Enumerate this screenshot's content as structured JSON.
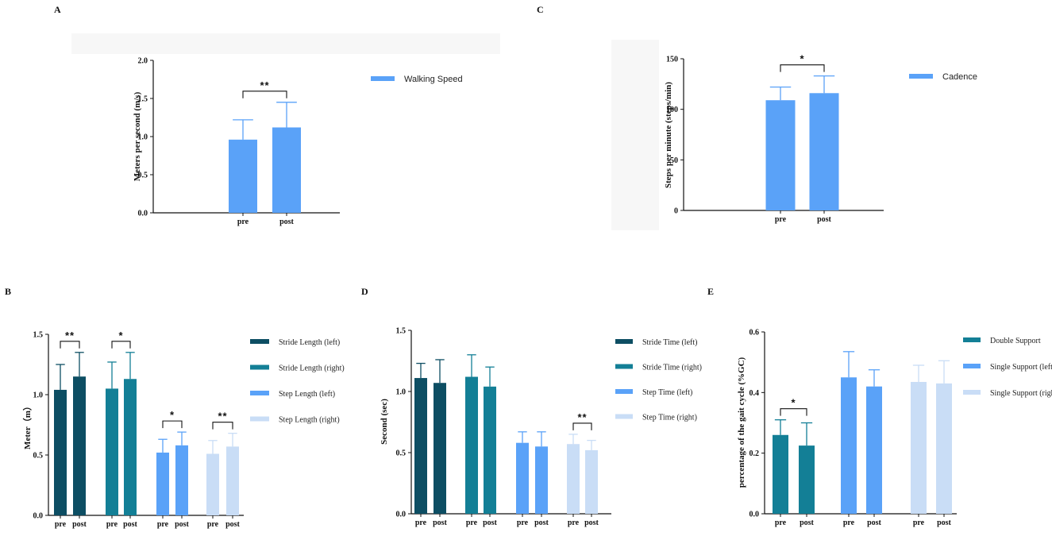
{
  "colors": {
    "light_blue": "#5aa2f8",
    "dark_teal": "#0d4e63",
    "teal": "#137f96",
    "pale_blue": "#c9ddf6",
    "axis": "#111111",
    "background_patch": "#f7f7f7"
  },
  "chart_data": [
    {
      "id": "A",
      "panel_label": "A",
      "type": "bar",
      "ylabel": "Meters per second (m/s)",
      "ylim": [
        0,
        2.0
      ],
      "yticks": [
        "0.0",
        "0.5",
        "1.0",
        "1.5",
        "2.0"
      ],
      "categories": [
        "pre",
        "post"
      ],
      "bars": [
        {
          "category": "pre",
          "value": 0.96,
          "error": 0.26,
          "color": "#5aa2f8"
        },
        {
          "category": "post",
          "value": 1.12,
          "error": 0.33,
          "color": "#5aa2f8"
        }
      ],
      "significance": [
        {
          "from": 0,
          "to": 1,
          "label": "**"
        }
      ],
      "legend": [
        {
          "label": "Walking Speed",
          "color": "#5aa2f8"
        }
      ],
      "legend_position": "right"
    },
    {
      "id": "C",
      "panel_label": "C",
      "type": "bar",
      "ylabel": "Steps per minute (steps/min)",
      "ylim": [
        0,
        150
      ],
      "yticks": [
        "0",
        "50",
        "100",
        "150"
      ],
      "categories": [
        "pre",
        "post"
      ],
      "bars": [
        {
          "category": "pre",
          "value": 109,
          "error": 13,
          "color": "#5aa2f8"
        },
        {
          "category": "post",
          "value": 116,
          "error": 17,
          "color": "#5aa2f8"
        }
      ],
      "significance": [
        {
          "from": 0,
          "to": 1,
          "label": "*"
        }
      ],
      "legend": [
        {
          "label": "Cadence",
          "color": "#5aa2f8"
        }
      ],
      "legend_position": "right"
    },
    {
      "id": "B",
      "panel_label": "B",
      "type": "bar",
      "ylabel": "Meter（m）",
      "ylim": [
        0,
        1.5
      ],
      "yticks": [
        "0.0",
        "0.5",
        "1.0",
        "1.5"
      ],
      "categories": [
        "pre",
        "post",
        "pre",
        "post",
        "pre",
        "post",
        "pre",
        "post"
      ],
      "bars": [
        {
          "category": "pre",
          "value": 1.04,
          "error": 0.21,
          "color": "#0d4e63"
        },
        {
          "category": "post",
          "value": 1.15,
          "error": 0.2,
          "color": "#0d4e63"
        },
        {
          "category": "pre",
          "value": 1.05,
          "error": 0.22,
          "color": "#137f96"
        },
        {
          "category": "post",
          "value": 1.13,
          "error": 0.22,
          "color": "#137f96"
        },
        {
          "category": "pre",
          "value": 0.52,
          "error": 0.11,
          "color": "#5aa2f8"
        },
        {
          "category": "post",
          "value": 0.58,
          "error": 0.11,
          "color": "#5aa2f8"
        },
        {
          "category": "pre",
          "value": 0.51,
          "error": 0.11,
          "color": "#c9ddf6"
        },
        {
          "category": "post",
          "value": 0.57,
          "error": 0.11,
          "color": "#c9ddf6"
        }
      ],
      "significance": [
        {
          "from": 0,
          "to": 1,
          "label": "**"
        },
        {
          "from": 2,
          "to": 3,
          "label": "*"
        },
        {
          "from": 4,
          "to": 5,
          "label": "*"
        },
        {
          "from": 6,
          "to": 7,
          "label": "**"
        }
      ],
      "legend": [
        {
          "label": "Stride Length (left)",
          "color": "#0d4e63"
        },
        {
          "label": "Stride Length (right)",
          "color": "#137f96"
        },
        {
          "label": "Step Length (left)",
          "color": "#5aa2f8"
        },
        {
          "label": "Step Length (right)",
          "color": "#c9ddf6"
        }
      ],
      "legend_position": "right"
    },
    {
      "id": "D",
      "panel_label": "D",
      "type": "bar",
      "ylabel": "Second (sec)",
      "ylim": [
        0,
        1.5
      ],
      "yticks": [
        "0.0",
        "0.5",
        "1.0",
        "1.5"
      ],
      "categories": [
        "pre",
        "post",
        "pre",
        "post",
        "pre",
        "post",
        "pre",
        "post"
      ],
      "bars": [
        {
          "category": "pre",
          "value": 1.11,
          "error": 0.12,
          "color": "#0d4e63"
        },
        {
          "category": "post",
          "value": 1.07,
          "error": 0.19,
          "color": "#0d4e63"
        },
        {
          "category": "pre",
          "value": 1.12,
          "error": 0.18,
          "color": "#137f96"
        },
        {
          "category": "post",
          "value": 1.04,
          "error": 0.16,
          "color": "#137f96"
        },
        {
          "category": "pre",
          "value": 0.58,
          "error": 0.09,
          "color": "#5aa2f8"
        },
        {
          "category": "post",
          "value": 0.55,
          "error": 0.12,
          "color": "#5aa2f8"
        },
        {
          "category": "pre",
          "value": 0.57,
          "error": 0.08,
          "color": "#c9ddf6"
        },
        {
          "category": "post",
          "value": 0.52,
          "error": 0.08,
          "color": "#c9ddf6"
        }
      ],
      "significance": [
        {
          "from": 6,
          "to": 7,
          "label": "**"
        }
      ],
      "legend": [
        {
          "label": "Stride Time (left)",
          "color": "#0d4e63"
        },
        {
          "label": "Stride Time (right)",
          "color": "#137f96"
        },
        {
          "label": "Step Time (left)",
          "color": "#5aa2f8"
        },
        {
          "label": "Step Time (right)",
          "color": "#c9ddf6"
        }
      ],
      "legend_position": "right"
    },
    {
      "id": "E",
      "panel_label": "E",
      "type": "bar",
      "ylabel": "percentage of the gait cycle (%GC)",
      "ylim": [
        0,
        0.6
      ],
      "yticks": [
        "0.0",
        "0.2",
        "0.4",
        "0.6"
      ],
      "categories": [
        "pre",
        "post",
        "pre",
        "post",
        "pre",
        "post"
      ],
      "bars": [
        {
          "category": "pre",
          "value": 0.26,
          "error": 0.05,
          "color": "#137f96"
        },
        {
          "category": "post",
          "value": 0.225,
          "error": 0.075,
          "color": "#137f96"
        },
        {
          "category": "pre",
          "value": 0.45,
          "error": 0.085,
          "color": "#5aa2f8"
        },
        {
          "category": "post",
          "value": 0.42,
          "error": 0.055,
          "color": "#5aa2f8"
        },
        {
          "category": "pre",
          "value": 0.435,
          "error": 0.055,
          "color": "#c9ddf6"
        },
        {
          "category": "post",
          "value": 0.43,
          "error": 0.075,
          "color": "#c9ddf6"
        }
      ],
      "significance": [
        {
          "from": 0,
          "to": 1,
          "label": "*"
        }
      ],
      "legend": [
        {
          "label": "Double Support",
          "color": "#137f96"
        },
        {
          "label": "Single Support (left)",
          "color": "#5aa2f8"
        },
        {
          "label": "Single Support (right)",
          "color": "#c9ddf6"
        }
      ],
      "legend_position": "right"
    }
  ]
}
